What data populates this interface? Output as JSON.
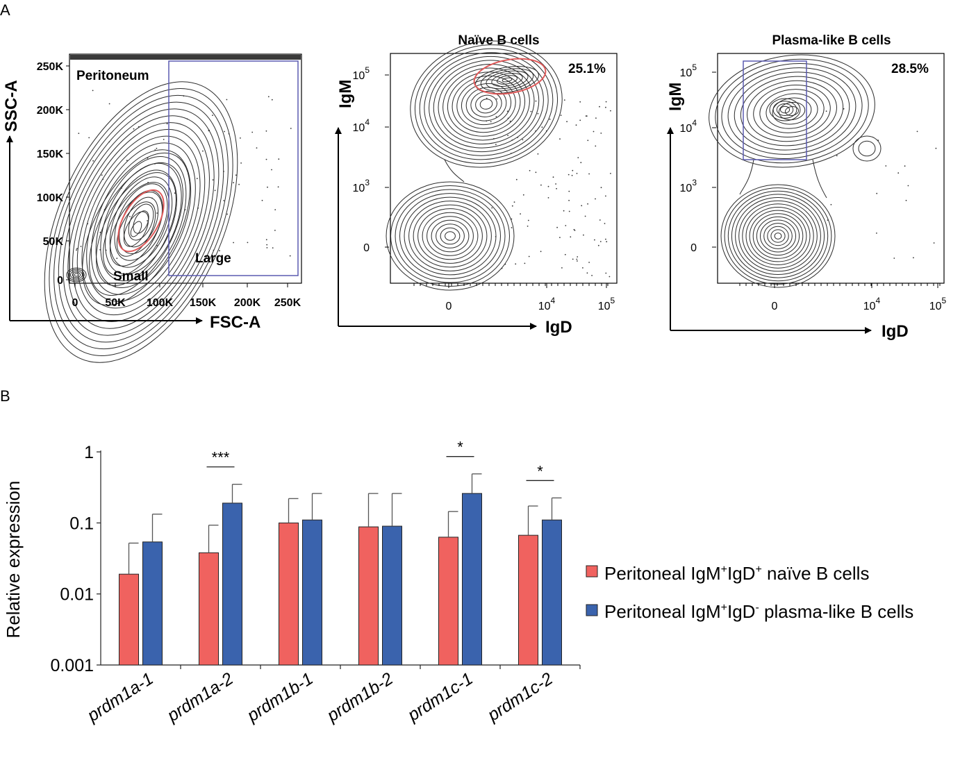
{
  "panel_a": {
    "label": "A",
    "scatter": {
      "y_axis": "SSC-A",
      "x_axis": "FSC-A",
      "y_ticks": [
        "250K",
        "200K",
        "150K",
        "100K",
        "50K",
        "0"
      ],
      "x_ticks": [
        "0",
        "50K",
        "100K",
        "150K",
        "200K",
        "250K"
      ],
      "region_label": "Peritoneum",
      "gate_small": "Small",
      "gate_large": "Large"
    },
    "naive": {
      "title": "Naïve B cells",
      "percent": "25.1%",
      "y_axis": "IgM",
      "x_axis": "IgD",
      "y_ticks": [
        {
          "base": "10",
          "exp": "5"
        },
        {
          "base": "10",
          "exp": "4"
        },
        {
          "base": "10",
          "exp": "3"
        },
        {
          "base": "0",
          "exp": ""
        }
      ],
      "x_ticks": [
        {
          "base": "0",
          "exp": ""
        },
        {
          "base": "10",
          "exp": "4"
        },
        {
          "base": "10",
          "exp": "5"
        }
      ]
    },
    "plasma": {
      "title": "Plasma-like B cells",
      "percent": "28.5%",
      "y_axis": "IgM",
      "x_axis": "IgD",
      "y_ticks": [
        {
          "base": "10",
          "exp": "5"
        },
        {
          "base": "10",
          "exp": "4"
        },
        {
          "base": "10",
          "exp": "3"
        },
        {
          "base": "0",
          "exp": ""
        }
      ],
      "x_ticks": [
        {
          "base": "0",
          "exp": ""
        },
        {
          "base": "10",
          "exp": "4"
        },
        {
          "base": "10",
          "exp": "5"
        }
      ]
    }
  },
  "panel_b": {
    "label": "B",
    "legend": [
      {
        "pre": "Peritoneal IgM",
        "sup1": "+",
        "mid": "IgD",
        "sup2": "+",
        "post": " naïve B cells",
        "color": "#f0625f"
      },
      {
        "pre": "Peritoneal IgM",
        "sup1": "+",
        "mid": "IgD",
        "sup2": "-",
        "post": " plasma-like B cells",
        "color": "#3a63ad"
      }
    ]
  },
  "colors": {
    "naive_bar": "#f0625f",
    "plasma_bar": "#3a63ad",
    "gate_blue": "#5a5ab0",
    "gate_red": "#e05a5a",
    "contour": "#2b2b2b"
  },
  "chart_data": [
    {
      "type": "contour",
      "title": "Peritoneum",
      "xlabel": "FSC-A",
      "ylabel": "SSC-A",
      "xlim": [
        0,
        262000
      ],
      "ylim": [
        0,
        262000
      ],
      "gates": [
        "Small",
        "Large"
      ]
    },
    {
      "type": "contour",
      "title": "Naïve B cells",
      "xlabel": "IgD",
      "ylabel": "IgM",
      "gate_percent": 25.1
    },
    {
      "type": "contour",
      "title": "Plasma-like B cells",
      "xlabel": "IgD",
      "ylabel": "IgM",
      "gate_percent": 28.5
    },
    {
      "type": "bar",
      "yscale": "log",
      "ylabel": "Relative expression",
      "ylim": [
        0.001,
        1
      ],
      "y_ticks": [
        {
          "value": 1,
          "label": "1"
        },
        {
          "value": 0.1,
          "label": "0.1"
        },
        {
          "value": 0.01,
          "label": "0.01"
        },
        {
          "value": 0.001,
          "label": "0.001"
        }
      ],
      "categories": [
        "prdm1a-1",
        "prdm1a-2",
        "prdm1b-1",
        "prdm1b-2",
        "prdm1c-1",
        "prdm1c-2"
      ],
      "series": [
        {
          "name": "Peritoneal IgM+IgD+ naïve B cells",
          "values": [
            0.019,
            0.038,
            0.1,
            0.088,
            0.063,
            0.067
          ],
          "error_upper": [
            0.052,
            0.093,
            0.22,
            0.26,
            0.145,
            0.173
          ]
        },
        {
          "name": "Peritoneal IgM+IgD- plasma-like B cells",
          "values": [
            0.054,
            0.19,
            0.11,
            0.09,
            0.26,
            0.11
          ],
          "error_upper": [
            0.133,
            0.35,
            0.26,
            0.26,
            0.49,
            0.225
          ]
        }
      ],
      "significance": [
        {
          "category": "prdm1a-2",
          "label": "***"
        },
        {
          "category": "prdm1c-1",
          "label": "*"
        },
        {
          "category": "prdm1c-2",
          "label": "*"
        }
      ]
    }
  ]
}
